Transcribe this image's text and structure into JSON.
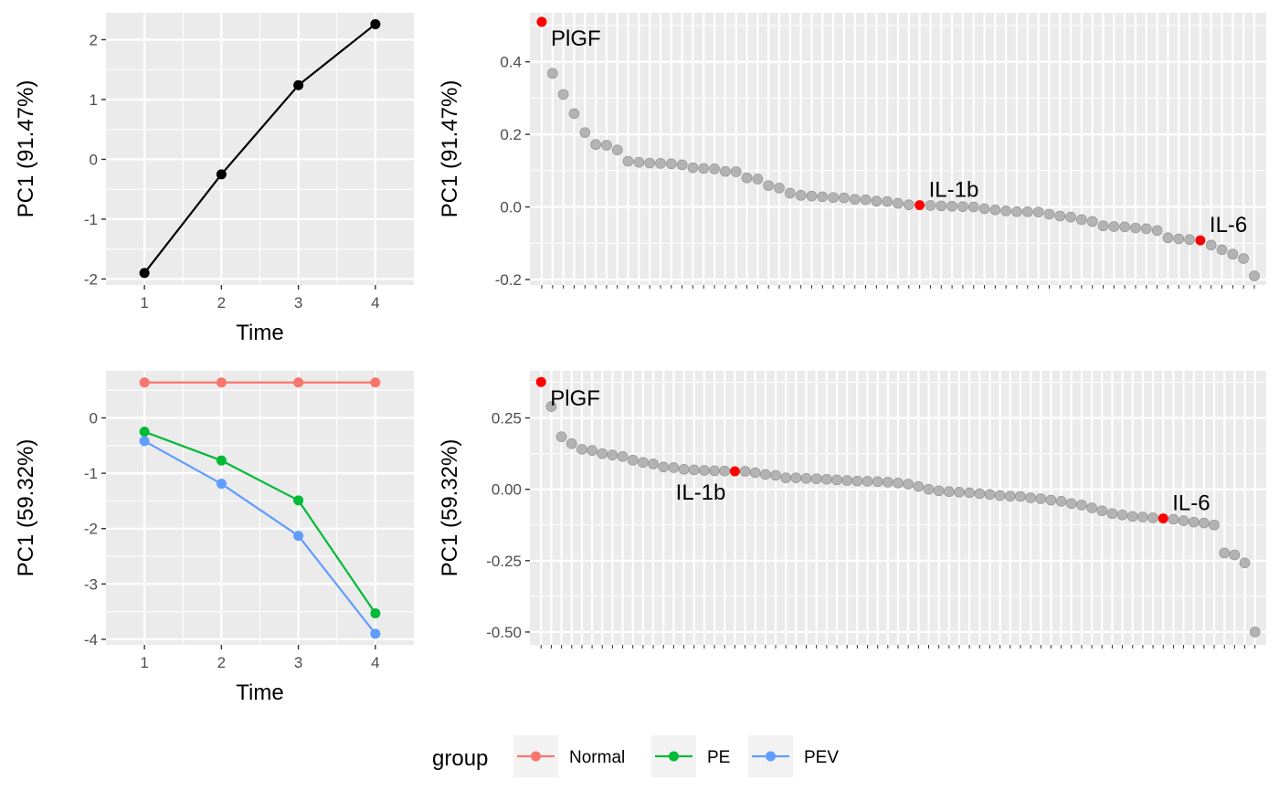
{
  "chart_data": [
    {
      "type": "line",
      "xlabel": "Time",
      "ylabel": "PC1 (91.47%)",
      "x": [
        1,
        2,
        3,
        4
      ],
      "xlim": [
        0.5,
        4.5
      ],
      "ylim": [
        -2.1,
        2.45
      ],
      "xticks": [
        1,
        2,
        3,
        4
      ],
      "yticks": [
        -2,
        -1,
        0,
        1,
        2
      ],
      "grid": true,
      "series": [
        {
          "values": [
            -1.9,
            -0.25,
            1.24,
            2.26
          ],
          "color": "#000000"
        }
      ]
    },
    {
      "type": "scatter",
      "ylabel": "PC1 (91.47%)",
      "ylim": [
        -0.215,
        0.535
      ],
      "yticks": [
        -0.2,
        0.0,
        0.2,
        0.4
      ],
      "ytick_labels": [
        "-0.2",
        "0.0",
        "0.2",
        "0.4"
      ],
      "grid": true,
      "point_color": "#b3b3b3",
      "highlight_color": "#ff0000",
      "values": [
        0.51,
        0.368,
        0.31,
        0.257,
        0.205,
        0.172,
        0.17,
        0.157,
        0.126,
        0.123,
        0.121,
        0.12,
        0.119,
        0.116,
        0.108,
        0.106,
        0.105,
        0.098,
        0.097,
        0.08,
        0.077,
        0.059,
        0.052,
        0.038,
        0.032,
        0.03,
        0.028,
        0.026,
        0.025,
        0.021,
        0.02,
        0.016,
        0.015,
        0.01,
        0.006,
        0.005,
        0.004,
        0.003,
        0.002,
        0.001,
        0.0,
        -0.005,
        -0.008,
        -0.011,
        -0.013,
        -0.013,
        -0.014,
        -0.02,
        -0.025,
        -0.028,
        -0.035,
        -0.04,
        -0.052,
        -0.054,
        -0.055,
        -0.058,
        -0.06,
        -0.065,
        -0.085,
        -0.088,
        -0.09,
        -0.092,
        -0.105,
        -0.118,
        -0.13,
        -0.142,
        -0.19
      ],
      "highlights": [
        {
          "index": 0,
          "label": "PlGF"
        },
        {
          "index": 35,
          "label": "IL-1b"
        },
        {
          "index": 61,
          "label": "IL-6"
        }
      ]
    },
    {
      "type": "line",
      "xlabel": "Time",
      "ylabel": "PC1 (59.32%)",
      "x": [
        1,
        2,
        3,
        4
      ],
      "xlim": [
        0.5,
        4.5
      ],
      "ylim": [
        -4.1,
        0.85
      ],
      "xticks": [
        1,
        2,
        3,
        4
      ],
      "yticks": [
        -4,
        -3,
        -2,
        -1,
        0
      ],
      "grid": true,
      "legend_position": "bottom",
      "series": [
        {
          "name": "Normal",
          "values": [
            0.64,
            0.64,
            0.64,
            0.64
          ],
          "color": "#f8766d"
        },
        {
          "name": "PE",
          "values": [
            -0.25,
            -0.77,
            -1.49,
            -3.53
          ],
          "color": "#00ba38"
        },
        {
          "name": "PEV",
          "values": [
            -0.42,
            -1.19,
            -2.13,
            -3.9
          ],
          "color": "#619cff"
        }
      ]
    },
    {
      "type": "scatter",
      "ylabel": "PC1 (59.32%)",
      "ylim": [
        -0.545,
        0.415
      ],
      "yticks": [
        -0.5,
        -0.25,
        0.0,
        0.25
      ],
      "ytick_labels": [
        "-0.50",
        "-0.25",
        "0.00",
        "0.25"
      ],
      "grid": true,
      "point_color": "#b3b3b3",
      "highlight_color": "#ff0000",
      "values": [
        0.376,
        0.29,
        0.184,
        0.16,
        0.14,
        0.136,
        0.125,
        0.12,
        0.115,
        0.102,
        0.094,
        0.089,
        0.078,
        0.076,
        0.07,
        0.068,
        0.066,
        0.065,
        0.064,
        0.063,
        0.063,
        0.058,
        0.052,
        0.049,
        0.04,
        0.04,
        0.038,
        0.037,
        0.035,
        0.033,
        0.031,
        0.029,
        0.028,
        0.027,
        0.025,
        0.022,
        0.018,
        0.01,
        0.0,
        -0.005,
        -0.008,
        -0.01,
        -0.012,
        -0.015,
        -0.018,
        -0.022,
        -0.024,
        -0.025,
        -0.03,
        -0.033,
        -0.038,
        -0.042,
        -0.05,
        -0.055,
        -0.065,
        -0.075,
        -0.085,
        -0.09,
        -0.095,
        -0.097,
        -0.1,
        -0.102,
        -0.105,
        -0.11,
        -0.115,
        -0.118,
        -0.125,
        -0.223,
        -0.23,
        -0.258,
        -0.5
      ],
      "highlights": [
        {
          "index": 0,
          "label": "PlGF"
        },
        {
          "index": 19,
          "label": "IL-1b"
        },
        {
          "index": 61,
          "label": "IL-6"
        }
      ]
    }
  ],
  "legend": {
    "title": "group",
    "items": [
      {
        "label": "Normal",
        "color": "#f8766d"
      },
      {
        "label": "PE",
        "color": "#00ba38"
      },
      {
        "label": "PEV",
        "color": "#619cff"
      }
    ]
  }
}
